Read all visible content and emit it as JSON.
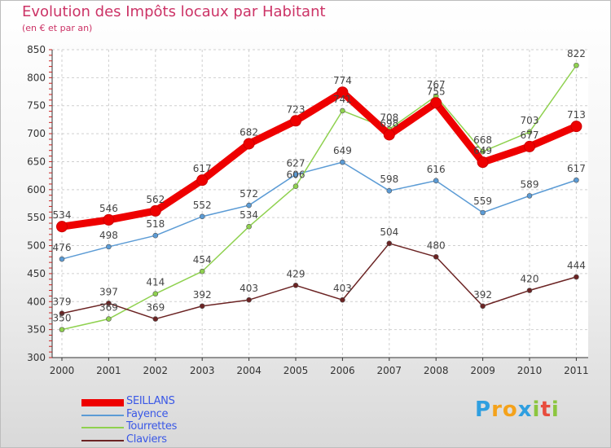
{
  "title": "Evolution des Impôts locaux par Habitant",
  "subtitle": "(en € et par an)",
  "logo": {
    "text": "Proxiti",
    "letters": [
      {
        "ch": "P",
        "color": "#2f9fe0"
      },
      {
        "ch": "r",
        "color": "#f4a21b"
      },
      {
        "ch": "o",
        "color": "#f4a21b"
      },
      {
        "ch": "x",
        "color": "#2f9fe0"
      },
      {
        "ch": "i",
        "color": "#8cc63f"
      },
      {
        "ch": "t",
        "color": "#e84c3d"
      },
      {
        "ch": "i",
        "color": "#8cc63f"
      }
    ]
  },
  "chart_data": {
    "type": "line",
    "title": "Evolution des Impôts locaux par Habitant",
    "subtitle": "(en € et par an)",
    "x": [
      "2000",
      "2001",
      "2002",
      "2003",
      "2004",
      "2005",
      "2006",
      "2007",
      "2008",
      "2009",
      "2010",
      "2011"
    ],
    "ylim": [
      300,
      850
    ],
    "yticks": [
      300,
      350,
      400,
      450,
      500,
      550,
      600,
      650,
      700,
      750,
      800,
      850
    ],
    "grid": true,
    "legend_position": "bottom-left",
    "series": [
      {
        "name": "SEILLANS",
        "color": "#ee0000",
        "emphasis": true,
        "values": [
          534,
          546,
          562,
          617,
          682,
          723,
          774,
          698,
          755,
          649,
          677,
          713
        ]
      },
      {
        "name": "Fayence",
        "color": "#5b9bd5",
        "emphasis": false,
        "values": [
          476,
          498,
          518,
          552,
          572,
          627,
          649,
          598,
          616,
          559,
          589,
          617
        ]
      },
      {
        "name": "Tourrettes",
        "color": "#8fd14f",
        "emphasis": false,
        "values": [
          350,
          369,
          414,
          454,
          534,
          606,
          741,
          708,
          767,
          668,
          703,
          822
        ]
      },
      {
        "name": "Claviers",
        "color": "#6b2323",
        "emphasis": false,
        "values": [
          379,
          397,
          369,
          392,
          403,
          429,
          403,
          504,
          480,
          392,
          420,
          444
        ]
      }
    ]
  }
}
